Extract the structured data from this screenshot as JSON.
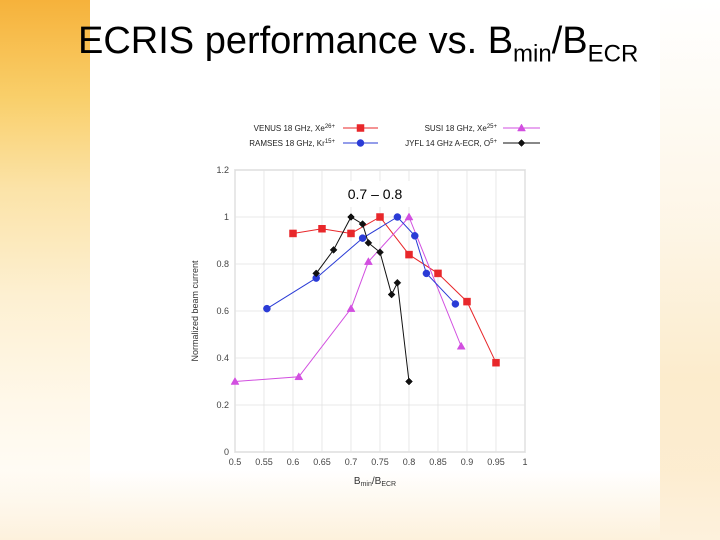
{
  "slide": {
    "title_main": "ECRIS performance vs. B",
    "title_sub1": "min",
    "title_mid": "/B",
    "title_sub2": "ECR"
  },
  "chart_data": {
    "type": "line",
    "xlabel_main": "B",
    "xlabel_sub1": "min",
    "xlabel_mid": "/B",
    "xlabel_sub2": "ECR",
    "ylabel": "Normalized beam current",
    "xlim": [
      0.5,
      1.0
    ],
    "ylim": [
      0,
      1.2
    ],
    "xticks": [
      "0.5",
      "0.55",
      "0.6",
      "0.65",
      "0.7",
      "0.75",
      "0.8",
      "0.85",
      "0.9",
      "0.95",
      "1"
    ],
    "yticks": [
      "0",
      "0.2",
      "0.4",
      "0.6",
      "0.8",
      "1",
      "1.2"
    ],
    "annotation": "0.7 – 0.8",
    "legend_position": "top",
    "series": [
      {
        "name": "VENUS 18 GHz, Xe",
        "sup": "26+",
        "color": "#e8272a",
        "marker": "square",
        "points": [
          [
            0.6,
            0.93
          ],
          [
            0.65,
            0.95
          ],
          [
            0.7,
            0.93
          ],
          [
            0.75,
            1.0
          ],
          [
            0.8,
            0.84
          ],
          [
            0.85,
            0.76
          ],
          [
            0.9,
            0.64
          ],
          [
            0.95,
            0.38
          ]
        ]
      },
      {
        "name": "SUSI 18 GHz, Xe",
        "sup": "25+",
        "color": "#d24fe0",
        "marker": "triangle",
        "points": [
          [
            0.5,
            0.3
          ],
          [
            0.61,
            0.32
          ],
          [
            0.7,
            0.61
          ],
          [
            0.73,
            0.81
          ],
          [
            0.8,
            1.0
          ],
          [
            0.89,
            0.45
          ]
        ]
      },
      {
        "name": "RAMSES 18 GHz, Kr",
        "sup": "15+",
        "color": "#2a3bd6",
        "marker": "circle",
        "points": [
          [
            0.555,
            0.61
          ],
          [
            0.64,
            0.74
          ],
          [
            0.72,
            0.91
          ],
          [
            0.78,
            1.0
          ],
          [
            0.81,
            0.92
          ],
          [
            0.83,
            0.76
          ],
          [
            0.88,
            0.63
          ]
        ]
      },
      {
        "name": "JYFL 14 GHz A-ECR, O",
        "sup": "5+",
        "color": "#111111",
        "marker": "diamond",
        "points": [
          [
            0.64,
            0.76
          ],
          [
            0.67,
            0.86
          ],
          [
            0.7,
            1.0
          ],
          [
            0.72,
            0.97
          ],
          [
            0.73,
            0.89
          ],
          [
            0.75,
            0.85
          ],
          [
            0.77,
            0.67
          ],
          [
            0.78,
            0.72
          ],
          [
            0.8,
            0.3
          ]
        ]
      }
    ]
  }
}
